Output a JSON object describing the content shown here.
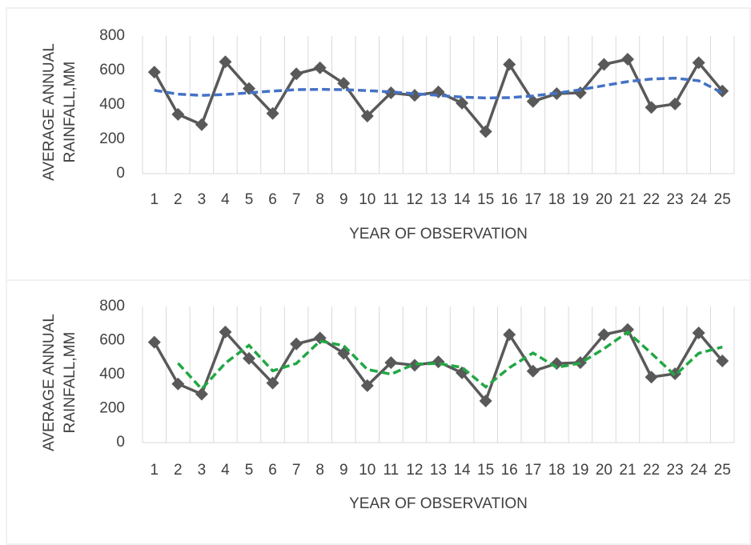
{
  "chart_data": [
    {
      "type": "line",
      "y_label": [
        "AVERAGE ANNUAL",
        "RAINFALL,MM"
      ],
      "x_label": "YEAR OF OBSERVATION",
      "categories": [
        1,
        2,
        3,
        4,
        5,
        6,
        7,
        8,
        9,
        10,
        11,
        12,
        13,
        14,
        15,
        16,
        17,
        18,
        19,
        20,
        21,
        22,
        23,
        24,
        25
      ],
      "ylim": [
        0,
        800
      ],
      "yticks": [
        0,
        200,
        400,
        600,
        800
      ],
      "grid": true,
      "series": [
        {
          "color": "#595959",
          "marker": "diamond",
          "dash": false,
          "values": [
            590,
            345,
            285,
            650,
            495,
            350,
            580,
            615,
            525,
            335,
            470,
            455,
            475,
            410,
            245,
            635,
            420,
            465,
            470,
            635,
            665,
            385,
            405,
            645,
            480
          ]
        },
        {
          "color": "#4472c4",
          "marker": "none",
          "dash": true,
          "values": [
            485,
            462,
            455,
            460,
            470,
            480,
            488,
            490,
            488,
            483,
            475,
            465,
            455,
            445,
            440,
            442,
            452,
            468,
            488,
            512,
            535,
            550,
            555,
            540,
            470
          ]
        }
      ]
    },
    {
      "type": "line",
      "y_label": [
        "AVERAGE ANNUAL",
        "RAINFALL,MM"
      ],
      "x_label": "YEAR OF OBSERVATION",
      "categories": [
        1,
        2,
        3,
        4,
        5,
        6,
        7,
        8,
        9,
        10,
        11,
        12,
        13,
        14,
        15,
        16,
        17,
        18,
        19,
        20,
        21,
        22,
        23,
        24,
        25
      ],
      "ylim": [
        0,
        800
      ],
      "yticks": [
        0,
        200,
        400,
        600,
        800
      ],
      "grid": true,
      "series": [
        {
          "color": "#595959",
          "marker": "diamond",
          "dash": false,
          "values": [
            590,
            345,
            285,
            650,
            495,
            350,
            580,
            615,
            525,
            335,
            470,
            455,
            475,
            410,
            245,
            635,
            420,
            465,
            470,
            635,
            665,
            385,
            405,
            645,
            480
          ]
        },
        {
          "color": "#22a745",
          "marker": "none",
          "dash": true,
          "values": [
            null,
            467,
            315,
            467,
            572,
            422,
            465,
            597,
            570,
            430,
            402,
            462,
            465,
            442,
            327,
            440,
            527,
            442,
            467,
            552,
            650,
            525,
            395,
            525,
            562
          ]
        }
      ]
    }
  ]
}
